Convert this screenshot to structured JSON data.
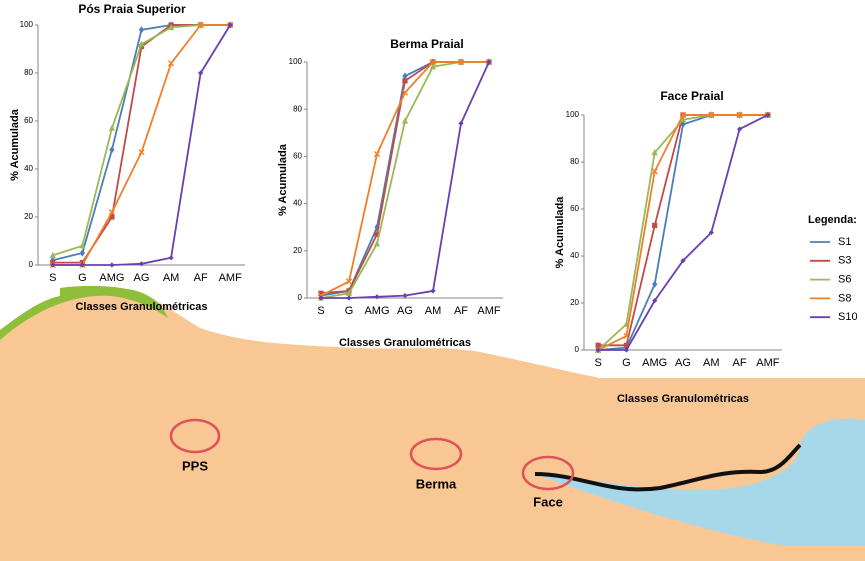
{
  "chart_data": [
    {
      "type": "line",
      "title": "Pós Praia Superior",
      "y_label": "% Acumulada",
      "x_label": "Classes Granulométricas",
      "categories": [
        "S",
        "G",
        "AMG",
        "AG",
        "AM",
        "AF",
        "AMF"
      ],
      "ylim": [
        0,
        100
      ],
      "yticks": [
        0,
        20,
        40,
        60,
        80,
        100
      ],
      "grid": false,
      "series": [
        {
          "color": "#4a7ebb",
          "values": [
            2,
            5,
            48,
            98,
            100,
            100,
            100
          ]
        },
        {
          "color": "#be4b48",
          "values": [
            1,
            1,
            20,
            91,
            100,
            100,
            100
          ]
        },
        {
          "color": "#98b954",
          "values": [
            4,
            8,
            57,
            92,
            99,
            100,
            100
          ]
        },
        {
          "color": "#f07f2a",
          "values": [
            0,
            0,
            22,
            47,
            84,
            100,
            100
          ]
        },
        {
          "color": "#6a3fb0",
          "values": [
            0,
            0,
            0,
            0.5,
            3,
            80,
            100
          ]
        }
      ]
    },
    {
      "type": "line",
      "title": "Berma Praial",
      "y_label": "% Acumulada",
      "x_label": "Classes Granulométricas",
      "categories": [
        "S",
        "G",
        "AMG",
        "AG",
        "AM",
        "AF",
        "AMF"
      ],
      "ylim": [
        0,
        100
      ],
      "yticks": [
        0,
        20,
        40,
        60,
        80,
        100
      ],
      "grid": false,
      "series": [
        {
          "color": "#4a7ebb",
          "values": [
            1,
            3,
            30,
            94,
            100,
            100,
            100
          ]
        },
        {
          "color": "#be4b48",
          "values": [
            2,
            3,
            27,
            92,
            100,
            100,
            100
          ]
        },
        {
          "color": "#98b954",
          "values": [
            0,
            2,
            23,
            75,
            98,
            100,
            100
          ]
        },
        {
          "color": "#f07f2a",
          "values": [
            1,
            7,
            61,
            87,
            100,
            100,
            100
          ]
        },
        {
          "color": "#6a3fb0",
          "values": [
            0,
            0,
            0.5,
            1,
            3,
            74,
            100
          ]
        }
      ]
    },
    {
      "type": "line",
      "title": "Face Praial",
      "y_label": "% Acumulada",
      "x_label": "Classes Granulométricas",
      "categories": [
        "S",
        "G",
        "AMG",
        "AG",
        "AM",
        "AF",
        "AMF"
      ],
      "ylim": [
        0,
        100
      ],
      "yticks": [
        0,
        20,
        40,
        60,
        80,
        100
      ],
      "grid": false,
      "legend_title": "Legenda:",
      "series": [
        {
          "name": "S1",
          "color": "#4a7ebb",
          "values": [
            0,
            1,
            28,
            96,
            100,
            100,
            100
          ]
        },
        {
          "name": "S3",
          "color": "#be4b48",
          "values": [
            2,
            2,
            53,
            100,
            100,
            100,
            100
          ]
        },
        {
          "name": "S6",
          "color": "#98b954",
          "values": [
            0,
            11,
            84,
            98,
            100,
            100,
            100
          ]
        },
        {
          "name": "S8",
          "color": "#f07f2a",
          "values": [
            0,
            6,
            76,
            100,
            100,
            100,
            100
          ]
        },
        {
          "name": "S10",
          "color": "#6a3fb0",
          "values": [
            0,
            0,
            21,
            38,
            50,
            94,
            100
          ]
        }
      ]
    }
  ],
  "diagram": {
    "labels": [
      "PPS",
      "Berma",
      "Face"
    ]
  }
}
